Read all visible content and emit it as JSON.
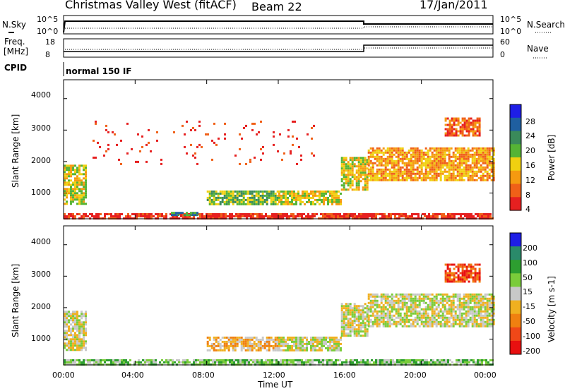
{
  "header": {
    "station": "Christmas Valley West (fitACF)",
    "beam": "Beam 22",
    "date": "17/Jan/2011"
  },
  "panels": {
    "nsky_label": "N.Sky",
    "nsky_ticks": [
      "10^5",
      "10^0"
    ],
    "nsearch_label": "N.Search",
    "freq_label": "Freq.",
    "freq_unit": "[MHz]",
    "freq_ticks": [
      "18",
      "8"
    ],
    "nave_label": "Nave",
    "nave_ticks": [
      "60",
      "0"
    ],
    "cpid_label": "CPID",
    "cpid_value": "normal 150 IF"
  },
  "colors": {
    "power": [
      "#1e1ee6",
      "#1f5fa0",
      "#3a8a5a",
      "#55b435",
      "#f0d010",
      "#f59a10",
      "#f06018",
      "#e62020"
    ],
    "velocity": [
      "#1e1ee6",
      "#2a8a6a",
      "#2d9e30",
      "#7acc3a",
      "#c8c8c8",
      "#f0b020",
      "#f08010",
      "#f04818",
      "#e81010"
    ]
  },
  "chart_data": [
    {
      "type": "heatmap",
      "quantity": "power",
      "xlabel": "Time UT",
      "ylabel": "Slant Range [km]",
      "x_range_hours": [
        0,
        24
      ],
      "ylim": [
        180,
        4600
      ],
      "y_ticks": [
        1000,
        2000,
        3000,
        4000
      ],
      "colorbar_label": "Power [dB]",
      "colorbar_ticks": [
        4,
        8,
        12,
        16,
        20,
        24,
        28
      ],
      "colorbar_range": [
        0,
        30
      ],
      "regions": [
        {
          "t0": 0.0,
          "t1": 1.3,
          "r0": 650,
          "r1": 1900,
          "level": 3
        },
        {
          "t0": 8.0,
          "t1": 12.0,
          "r0": 620,
          "r1": 1080,
          "level": 4
        },
        {
          "t0": 12.0,
          "t1": 15.5,
          "r0": 630,
          "r1": 1080,
          "level": 3
        },
        {
          "t0": 15.5,
          "t1": 17.0,
          "r0": 1100,
          "r1": 2150,
          "level": 3
        },
        {
          "t0": 17.0,
          "t1": 24.0,
          "r0": 1380,
          "r1": 2450,
          "level": 2
        },
        {
          "t0": 0.0,
          "t1": 24.0,
          "r0": 200,
          "r1": 360,
          "level": 0
        },
        {
          "t0": 6.0,
          "t1": 7.5,
          "r0": 280,
          "r1": 400,
          "level": 5
        },
        {
          "t0": 1.5,
          "t1": 14.0,
          "r0": 1900,
          "r1": 3300,
          "level": 0
        },
        {
          "t0": 21.3,
          "t1": 23.3,
          "r0": 2800,
          "r1": 3400,
          "level": 1
        }
      ]
    },
    {
      "type": "heatmap",
      "quantity": "velocity",
      "xlabel": "Time UT",
      "ylabel": "Slant Range [km]",
      "x_range_hours": [
        0,
        24
      ],
      "ylim": [
        180,
        4600
      ],
      "y_ticks": [
        1000,
        2000,
        3000,
        4000
      ],
      "x_tick_labels": [
        "00:00",
        "04:00",
        "08:00",
        "12:00",
        "16:00",
        "20:00",
        "00:00"
      ],
      "colorbar_label": "Velocity [m s-1]",
      "colorbar_ticks": [
        200,
        100,
        50,
        15,
        -15,
        -50,
        -100,
        -200
      ],
      "colorbar_range": [
        -250,
        250
      ],
      "regions": [
        {
          "t0": 0.0,
          "t1": 1.3,
          "r0": 650,
          "r1": 1900,
          "level": 4
        },
        {
          "t0": 8.0,
          "t1": 12.0,
          "r0": 620,
          "r1": 1080,
          "level": 5
        },
        {
          "t0": 12.0,
          "t1": 15.5,
          "r0": 630,
          "r1": 1080,
          "level": 4
        },
        {
          "t0": 15.5,
          "t1": 17.0,
          "r0": 1100,
          "r1": 2150,
          "level": 4
        },
        {
          "t0": 17.0,
          "t1": 24.0,
          "r0": 1380,
          "r1": 2450,
          "level": 4
        },
        {
          "t0": 0.0,
          "t1": 24.0,
          "r0": 200,
          "r1": 360,
          "level": 3
        },
        {
          "t0": 21.3,
          "t1": 23.3,
          "r0": 2800,
          "r1": 3400,
          "level": 7
        }
      ]
    }
  ]
}
